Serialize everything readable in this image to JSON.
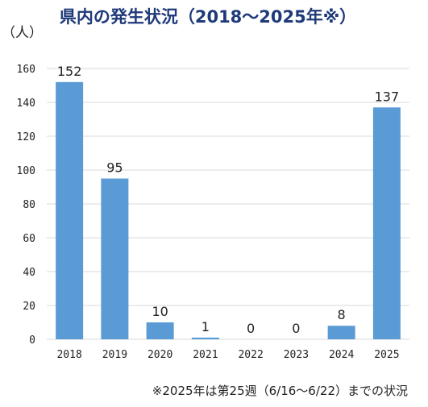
{
  "chart_data": {
    "type": "bar",
    "title": "県内の発生状況（2018～2025年※）",
    "ylabel": "（人）",
    "xlabel": "",
    "categories": [
      "2018",
      "2019",
      "2020",
      "2021",
      "2022",
      "2023",
      "2024",
      "2025"
    ],
    "values": [
      152,
      95,
      10,
      1,
      0,
      0,
      8,
      137
    ],
    "data_labels": [
      "152",
      "95",
      "10",
      "1",
      "0",
      "0",
      "8",
      "137"
    ],
    "ylim": [
      0,
      160
    ],
    "yticks": [
      0,
      20,
      40,
      60,
      80,
      100,
      120,
      140,
      160
    ],
    "ytick_labels": [
      "0",
      "20",
      "40",
      "60",
      "80",
      "100",
      "120",
      "140",
      "160"
    ],
    "grid": true,
    "bar_color": "#5b9bd5",
    "gridline_color": "#d9d9d9",
    "title_color": "#1f3a7a",
    "footnote": "※2025年は第25週（6/16～6/22）までの状況"
  }
}
